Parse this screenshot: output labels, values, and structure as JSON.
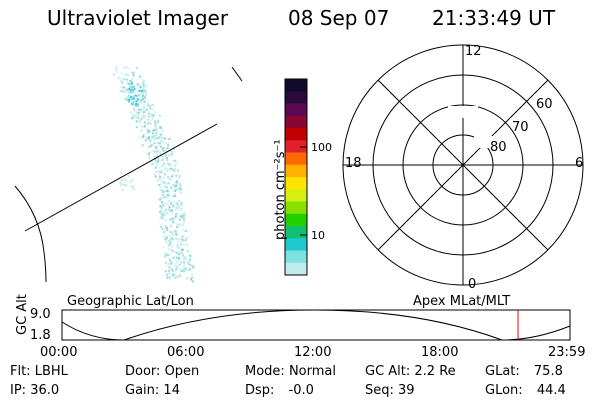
{
  "header": {
    "title": "Ultraviolet Imager",
    "date": "08 Sep 07",
    "time": "21:33:49 UT"
  },
  "colorbar": {
    "unit_label": "photon cm⁻²s⁻¹",
    "ticks": [
      "100",
      "10"
    ],
    "colors": [
      "#120a2a",
      "#2a0b3b",
      "#5a0a55",
      "#8a0630",
      "#c00000",
      "#e0202a",
      "#ff6a00",
      "#ffb000",
      "#ffe400",
      "#d8ee10",
      "#88e000",
      "#20d000",
      "#10c070",
      "#20c8d0",
      "#80e0e0",
      "#c0ecec"
    ]
  },
  "left_panel": {
    "label": "Geographic Lat/Lon"
  },
  "polar_panel": {
    "label": "Apex MLat/MLT",
    "mlt_labels": [
      "12",
      "18",
      "6",
      "0"
    ],
    "mlat_labels": [
      "60",
      "70",
      "80"
    ]
  },
  "altitude_strip": {
    "y_axis_title": "GC Alt",
    "y_ticks": [
      "9.0",
      "1.8"
    ],
    "x_ticks": [
      "00:00",
      "06:00",
      "12:00",
      "18:00",
      "23:59"
    ],
    "current_marker_color": "#ff0000"
  },
  "footer": {
    "row1": [
      {
        "label": "Flt:",
        "value": "LBHL"
      },
      {
        "label": "Door:",
        "value": "Open"
      },
      {
        "label": "Mode:",
        "value": "Normal"
      },
      {
        "label": "GC Alt:",
        "value": "2.2 Re"
      },
      {
        "label": "GLat:",
        "value": "75.8"
      }
    ],
    "row2": [
      {
        "label": "IP:",
        "value": "36.0"
      },
      {
        "label": "Gain:",
        "value": "14"
      },
      {
        "label": "Dsp:",
        "value": "-0.0"
      },
      {
        "label": "Seq:",
        "value": "39"
      },
      {
        "label": "GLon:",
        "value": "44.4"
      }
    ]
  }
}
